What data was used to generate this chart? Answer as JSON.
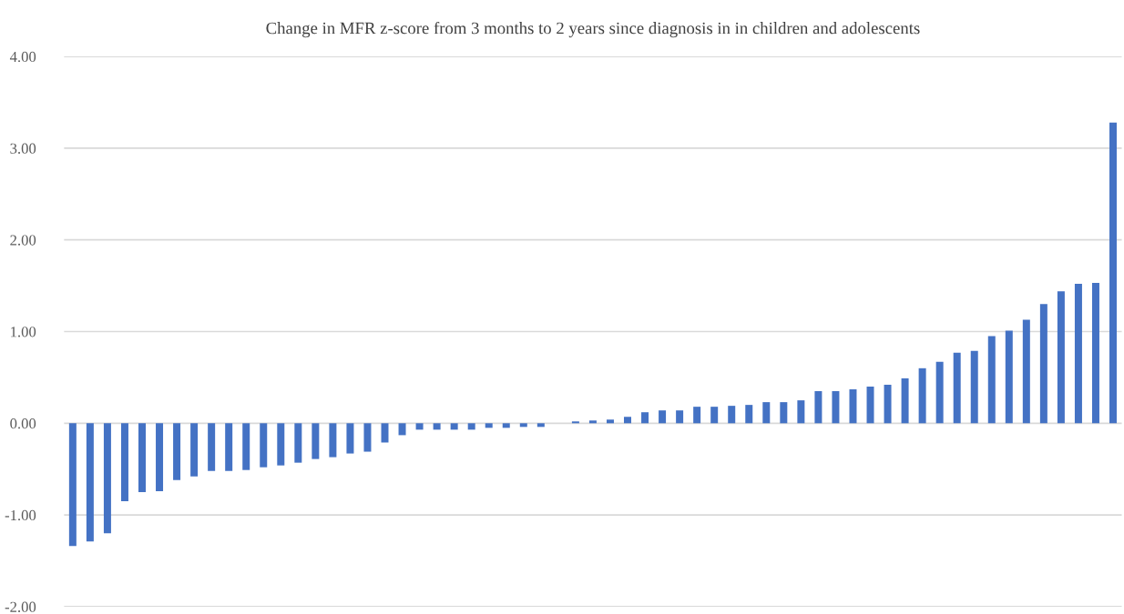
{
  "chart_data": {
    "type": "bar",
    "title": "Change in MFR z-score from 3 months to 2 years since diagnosis in in children and adolescents",
    "categories": [
      null,
      null,
      null,
      null,
      null,
      null,
      null,
      null,
      null,
      null,
      null,
      null,
      null,
      null,
      null,
      null,
      null,
      null,
      null,
      null,
      null,
      null,
      null,
      null,
      null,
      null,
      null,
      null,
      null,
      null,
      null,
      null,
      null,
      null,
      null,
      null,
      null,
      null,
      null,
      null,
      null,
      null,
      null,
      null,
      null,
      null,
      null,
      null,
      null,
      null,
      null,
      null,
      null,
      null,
      null,
      null,
      null,
      null,
      null,
      null,
      null
    ],
    "values": [
      -1.34,
      -1.29,
      -1.2,
      -0.85,
      -0.75,
      -0.74,
      -0.62,
      -0.58,
      -0.52,
      -0.52,
      -0.51,
      -0.48,
      -0.46,
      -0.43,
      -0.39,
      -0.37,
      -0.33,
      -0.31,
      -0.21,
      -0.13,
      -0.07,
      -0.07,
      -0.07,
      -0.07,
      -0.05,
      -0.05,
      -0.04,
      -0.04,
      null,
      0.02,
      0.03,
      0.04,
      0.07,
      0.12,
      0.14,
      0.14,
      0.18,
      0.18,
      0.19,
      0.2,
      0.23,
      0.23,
      0.25,
      0.35,
      0.35,
      0.37,
      0.4,
      0.42,
      0.49,
      0.6,
      0.67,
      0.77,
      0.79,
      0.95,
      1.01,
      1.13,
      1.3,
      1.44,
      1.52,
      1.53,
      3.28
    ],
    "color": "#4472c4",
    "ylim": [
      -2,
      4
    ],
    "yticks": [
      {
        "value": -2,
        "label": "-2.00"
      },
      {
        "value": -1,
        "label": "-1.00"
      },
      {
        "value": 0,
        "label": "0.00"
      },
      {
        "value": 1,
        "label": "1.00"
      },
      {
        "value": 2,
        "label": "2.00"
      },
      {
        "value": 3,
        "label": "3.00"
      },
      {
        "value": 4,
        "label": "4.00"
      }
    ],
    "grid": "y",
    "tick_labels": "y"
  }
}
